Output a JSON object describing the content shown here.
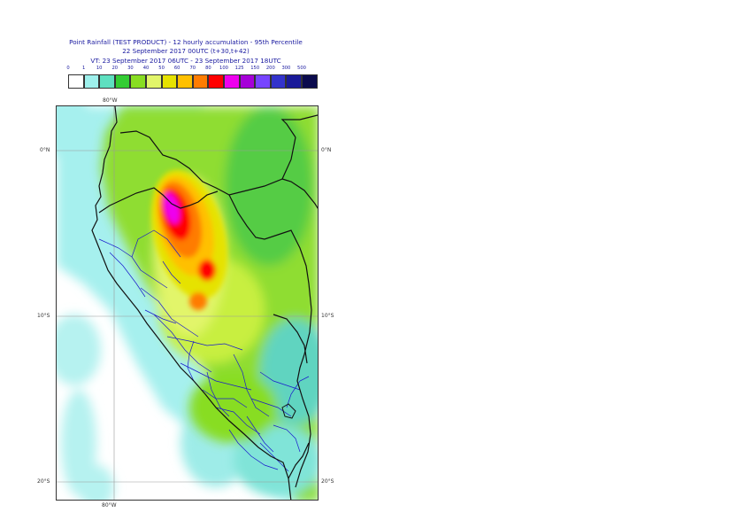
{
  "header": {
    "line1": "Point Rainfall (TEST PRODUCT) - 12 hourly accumulation - 95th Percentile",
    "line2": "22 September 2017 00UTC (t+30,t+42)",
    "line3": "VT: 23 September 2017 06UTC - 23 September 2017 18UTC"
  },
  "legend": {
    "ticks": [
      "0",
      "1",
      "10",
      "20",
      "30",
      "40",
      "50",
      "60",
      "70",
      "80",
      "100",
      "125",
      "150",
      "200",
      "300",
      "500"
    ],
    "colors": [
      "#ffffff",
      "#9ef0ec",
      "#5ee0c0",
      "#33cc33",
      "#88dd22",
      "#e2f56a",
      "#e6e200",
      "#ffc000",
      "#ff7c00",
      "#ff0000",
      "#ee00ee",
      "#a600d8",
      "#7744ff",
      "#3333cc",
      "#1a1a99",
      "#0b0b4d"
    ]
  },
  "map": {
    "lon_label_top": "80°W",
    "lon_label_bottom": "80°W",
    "lat_labels": {
      "eq_left": "0°N",
      "eq_right": "0°N",
      "s10_left": "10°S",
      "s10_right": "10°S",
      "s20_left": "20°S",
      "s20_right": "20°S"
    }
  }
}
